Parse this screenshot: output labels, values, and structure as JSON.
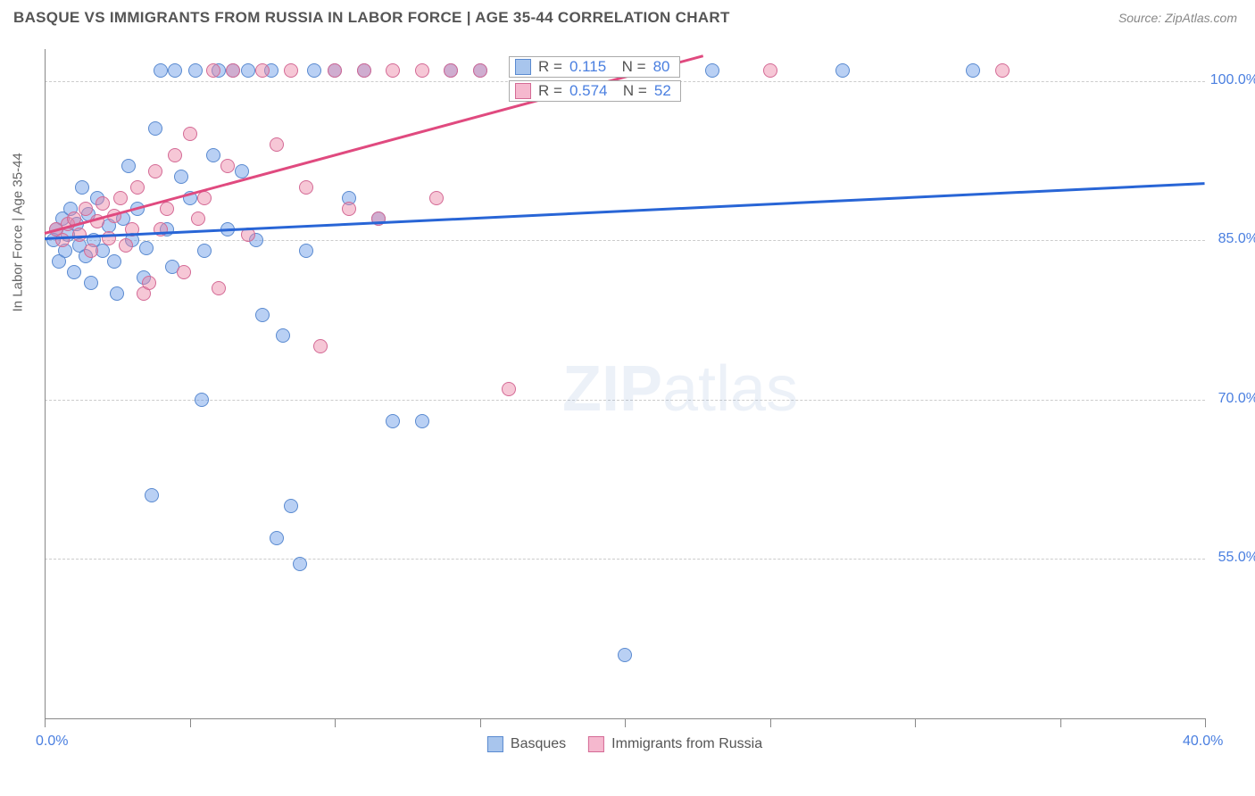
{
  "header": {
    "title": "BASQUE VS IMMIGRANTS FROM RUSSIA IN LABOR FORCE | AGE 35-44 CORRELATION CHART",
    "source": "Source: ZipAtlas.com"
  },
  "chart": {
    "type": "scatter",
    "ylabel": "In Labor Force | Age 35-44",
    "xlim": [
      0,
      40
    ],
    "ylim": [
      40,
      103
    ],
    "background_color": "#ffffff",
    "grid_color": "#cccccc",
    "axis_color": "#888888",
    "label_color": "#4a7fe0",
    "title_color": "#555555",
    "title_fontsize": 17,
    "label_fontsize": 16,
    "ylabel_fontsize": 15,
    "point_radius": 8,
    "point_opacity": 0.55,
    "xticks": [
      0,
      5,
      10,
      15,
      20,
      25,
      30,
      35,
      40
    ],
    "xtick_labels": {
      "0": "0.0%",
      "40": "40.0%"
    },
    "yticks": [
      55,
      70,
      85,
      100
    ],
    "ytick_labels": {
      "55": "55.0%",
      "70": "70.0%",
      "85": "85.0%",
      "100": "100.0%"
    },
    "watermark": {
      "text_bold": "ZIP",
      "text_light": "atlas",
      "color": "rgba(100,140,200,0.12)",
      "fontsize": 72
    }
  },
  "series": [
    {
      "name": "Basques",
      "color_fill": "rgba(100,150,230,0.45)",
      "color_stroke": "#5a8ad0",
      "swatch_fill": "#a8c5ed",
      "swatch_border": "#5a8ad0",
      "trend_color": "#2865d6",
      "R": "0.115",
      "N": "80",
      "trend": {
        "x1": 0,
        "y1": 85.3,
        "x2": 40,
        "y2": 90.5
      },
      "points": [
        [
          0.3,
          85
        ],
        [
          0.4,
          86
        ],
        [
          0.5,
          83
        ],
        [
          0.6,
          87
        ],
        [
          0.7,
          84
        ],
        [
          0.8,
          85.5
        ],
        [
          0.9,
          88
        ],
        [
          1.0,
          82
        ],
        [
          1.1,
          86.5
        ],
        [
          1.2,
          84.5
        ],
        [
          1.3,
          90
        ],
        [
          1.4,
          83.5
        ],
        [
          1.5,
          87.5
        ],
        [
          1.6,
          81
        ],
        [
          1.7,
          85
        ],
        [
          1.8,
          89
        ],
        [
          2.0,
          84
        ],
        [
          2.2,
          86.4
        ],
        [
          2.4,
          83
        ],
        [
          2.5,
          80
        ],
        [
          2.7,
          87
        ],
        [
          2.9,
          92
        ],
        [
          3.0,
          85
        ],
        [
          3.2,
          88
        ],
        [
          3.4,
          81.5
        ],
        [
          3.5,
          84.3
        ],
        [
          3.7,
          61
        ],
        [
          3.8,
          95.5
        ],
        [
          4.0,
          101
        ],
        [
          4.2,
          86
        ],
        [
          4.4,
          82.5
        ],
        [
          4.5,
          101
        ],
        [
          4.7,
          91
        ],
        [
          5.0,
          89
        ],
        [
          5.2,
          101
        ],
        [
          5.4,
          70
        ],
        [
          5.5,
          84
        ],
        [
          5.8,
          93
        ],
        [
          6.0,
          101
        ],
        [
          6.3,
          86
        ],
        [
          6.5,
          101
        ],
        [
          6.8,
          91.5
        ],
        [
          7.0,
          101
        ],
        [
          7.3,
          85
        ],
        [
          7.5,
          78
        ],
        [
          7.8,
          101
        ],
        [
          8.0,
          57
        ],
        [
          8.2,
          76
        ],
        [
          8.5,
          60
        ],
        [
          8.8,
          54.5
        ],
        [
          9.0,
          84
        ],
        [
          9.3,
          101
        ],
        [
          10.0,
          101
        ],
        [
          10.5,
          89
        ],
        [
          11.0,
          101
        ],
        [
          11.5,
          87
        ],
        [
          12.0,
          68
        ],
        [
          13.0,
          68
        ],
        [
          14.0,
          101
        ],
        [
          15.0,
          101
        ],
        [
          17.5,
          101
        ],
        [
          20.0,
          46
        ],
        [
          21.0,
          101
        ],
        [
          23.0,
          101
        ],
        [
          27.5,
          101
        ],
        [
          32.0,
          101
        ]
      ]
    },
    {
      "name": "Immigrants from Russia",
      "color_fill": "rgba(235,130,165,0.45)",
      "color_stroke": "#d46a95",
      "swatch_fill": "#f5b8ce",
      "swatch_border": "#d46a95",
      "trend_color": "#e04a7f",
      "R": "0.574",
      "N": "52",
      "trend": {
        "x1": 0,
        "y1": 85.8,
        "x2": 22.7,
        "y2": 102.5
      },
      "points": [
        [
          0.4,
          86
        ],
        [
          0.6,
          85
        ],
        [
          0.8,
          86.5
        ],
        [
          1.0,
          87
        ],
        [
          1.2,
          85.5
        ],
        [
          1.4,
          88
        ],
        [
          1.6,
          84
        ],
        [
          1.8,
          86.8
        ],
        [
          2.0,
          88.5
        ],
        [
          2.2,
          85.2
        ],
        [
          2.4,
          87.3
        ],
        [
          2.6,
          89
        ],
        [
          2.8,
          84.5
        ],
        [
          3.0,
          86
        ],
        [
          3.2,
          90
        ],
        [
          3.4,
          80
        ],
        [
          3.6,
          81
        ],
        [
          3.8,
          91.5
        ],
        [
          4.0,
          86
        ],
        [
          4.2,
          88
        ],
        [
          4.5,
          93
        ],
        [
          4.8,
          82
        ],
        [
          5.0,
          95
        ],
        [
          5.3,
          87
        ],
        [
          5.5,
          89
        ],
        [
          5.8,
          101
        ],
        [
          6.0,
          80.5
        ],
        [
          6.3,
          92
        ],
        [
          6.5,
          101
        ],
        [
          7.0,
          85.5
        ],
        [
          7.5,
          101
        ],
        [
          8.0,
          94
        ],
        [
          8.5,
          101
        ],
        [
          9.0,
          90
        ],
        [
          9.5,
          75
        ],
        [
          10.0,
          101
        ],
        [
          10.5,
          88
        ],
        [
          11.0,
          101
        ],
        [
          11.5,
          87
        ],
        [
          12.0,
          101
        ],
        [
          13.0,
          101
        ],
        [
          13.5,
          89
        ],
        [
          14.0,
          101
        ],
        [
          15.0,
          101
        ],
        [
          16.0,
          71
        ],
        [
          17.0,
          101
        ],
        [
          19.0,
          101
        ],
        [
          25.0,
          101
        ],
        [
          33.0,
          101
        ]
      ]
    }
  ]
}
